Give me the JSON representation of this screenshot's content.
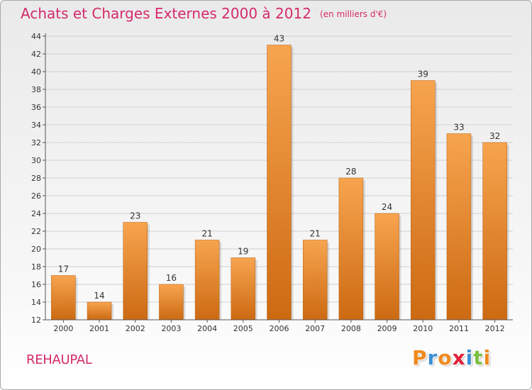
{
  "title": "Achats et Charges Externes 2000 à 2012",
  "unit_label": "(en milliers d'€)",
  "commune": "REHAUPAL",
  "logo": {
    "letters": [
      "P",
      "r",
      "o",
      "x",
      "i",
      "t",
      "i"
    ],
    "colors": [
      "#f08a1c",
      "#3a8fd4",
      "#f08a1c",
      "#e2233b",
      "#3a8fd4",
      "#7cc043",
      "#f08a1c"
    ]
  },
  "colors": {
    "title": "#d42a6a",
    "bar_top": "#f7a44f",
    "bar_bottom": "#cc6a12",
    "grid": "#d0d0d0",
    "axis": "#555555"
  },
  "chart_data": {
    "type": "bar",
    "categories": [
      "2000",
      "2001",
      "2002",
      "2003",
      "2004",
      "2005",
      "2006",
      "2007",
      "2008",
      "2009",
      "2010",
      "2011",
      "2012"
    ],
    "values": [
      17,
      14,
      23,
      16,
      21,
      19,
      43,
      21,
      28,
      24,
      39,
      33,
      32
    ],
    "ylim": [
      12,
      44
    ],
    "yticks": [
      12,
      14,
      16,
      18,
      20,
      22,
      24,
      26,
      28,
      30,
      32,
      34,
      36,
      38,
      40,
      42,
      44
    ],
    "grid": true,
    "data_labels": true
  }
}
